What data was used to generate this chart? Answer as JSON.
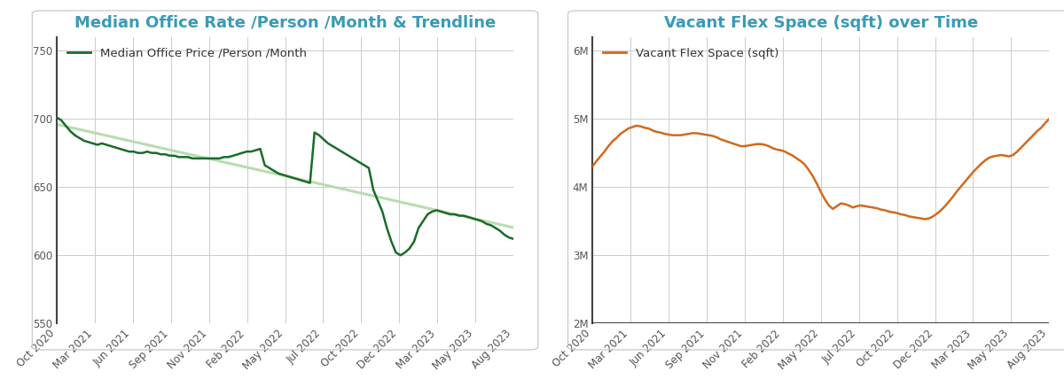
{
  "left_title": "Median Office Rate /Person /Month & Trendline",
  "right_title": "Vacant Flex Space (sqft) over Time",
  "title_color": "#3a9ab5",
  "left_legend": "Median Office Price /Person /Month",
  "right_legend": "Vacant Flex Space (sqft)",
  "left_line_color": "#1a6b2a",
  "right_line_color": "#d2691e",
  "trendline_color": "#b8ddb0",
  "left_ylim": [
    550,
    760
  ],
  "left_yticks": [
    550,
    600,
    650,
    700,
    750
  ],
  "right_ylim": [
    2000000,
    6200000
  ],
  "right_yticks": [
    2000000,
    3000000,
    4000000,
    5000000,
    6000000
  ],
  "xtick_labels": [
    "Oct 2020",
    "Mar 2021",
    "Jun 2021",
    "Sep 2021",
    "Nov 2021",
    "Feb 2022",
    "May 2022",
    "Jul 2022",
    "Oct 2022",
    "Dec 2022",
    "Mar 2023",
    "May 2023",
    "Aug 2023"
  ],
  "left_y": [
    701,
    699,
    695,
    691,
    688,
    686,
    684,
    683,
    682,
    681,
    682,
    681,
    680,
    679,
    678,
    677,
    676,
    676,
    675,
    675,
    676,
    675,
    675,
    674,
    674,
    673,
    673,
    672,
    672,
    672,
    671,
    671,
    671,
    671,
    671,
    671,
    671,
    672,
    672,
    673,
    674,
    675,
    676,
    676,
    677,
    678,
    666,
    664,
    662,
    660,
    659,
    658,
    657,
    656,
    655,
    654,
    653,
    690,
    688,
    685,
    682,
    680,
    678,
    676,
    674,
    672,
    670,
    668,
    666,
    664,
    648,
    640,
    632,
    620,
    610,
    602,
    600,
    602,
    605,
    610,
    620,
    625,
    630,
    632,
    633,
    632,
    631,
    630,
    630,
    629,
    629,
    628,
    627,
    626,
    625,
    623,
    622,
    620,
    618,
    615,
    613,
    612
  ],
  "right_y": [
    4300000,
    4380000,
    4450000,
    4520000,
    4600000,
    4670000,
    4720000,
    4780000,
    4820000,
    4860000,
    4880000,
    4900000,
    4890000,
    4870000,
    4860000,
    4830000,
    4810000,
    4800000,
    4780000,
    4770000,
    4760000,
    4760000,
    4760000,
    4770000,
    4780000,
    4790000,
    4790000,
    4780000,
    4770000,
    4760000,
    4750000,
    4730000,
    4700000,
    4680000,
    4660000,
    4640000,
    4620000,
    4600000,
    4600000,
    4610000,
    4620000,
    4630000,
    4630000,
    4620000,
    4600000,
    4570000,
    4550000,
    4540000,
    4520000,
    4490000,
    4460000,
    4420000,
    4380000,
    4330000,
    4250000,
    4160000,
    4050000,
    3930000,
    3820000,
    3730000,
    3680000,
    3720000,
    3760000,
    3750000,
    3730000,
    3700000,
    3720000,
    3730000,
    3720000,
    3710000,
    3700000,
    3690000,
    3670000,
    3660000,
    3640000,
    3630000,
    3620000,
    3600000,
    3590000,
    3570000,
    3560000,
    3550000,
    3540000,
    3530000,
    3540000,
    3570000,
    3610000,
    3660000,
    3720000,
    3790000,
    3860000,
    3940000,
    4010000,
    4080000,
    4150000,
    4220000,
    4280000,
    4340000,
    4390000,
    4430000,
    4450000,
    4460000,
    4470000,
    4460000,
    4450000,
    4470000,
    4520000,
    4580000,
    4640000,
    4700000,
    4760000,
    4820000,
    4870000,
    4940000,
    5000000
  ],
  "background_color": "#ffffff",
  "grid_color": "#cccccc",
  "tick_color": "#555555",
  "title_fontsize": 13,
  "legend_fontsize": 9.5,
  "tick_fontsize": 8.5,
  "right_ytick_labels": [
    "2M",
    "3M",
    "4M",
    "5M",
    "6M"
  ]
}
